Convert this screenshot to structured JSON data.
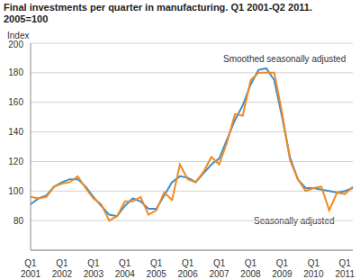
{
  "chart_data": {
    "type": "line",
    "title": "Final investments per quarter in manufacturing. Q1 2001-Q2 2011. 2005=100",
    "y_label": "Index",
    "categories": [
      "Q1 2001",
      null,
      null,
      null,
      "Q1 2002",
      null,
      null,
      null,
      "Q1 2003",
      null,
      null,
      null,
      "Q1 2004",
      null,
      null,
      null,
      "Q1 2005",
      null,
      null,
      null,
      "Q1 2006",
      null,
      null,
      null,
      "Q1 2007",
      null,
      null,
      null,
      "Q1 2008",
      null,
      null,
      null,
      "Q1 2009",
      null,
      null,
      null,
      "Q1 2010",
      null,
      null,
      null,
      "Q1 2011",
      null
    ],
    "series": [
      {
        "name": "Smoothed seasonally adjusted",
        "color": "#3b8fcf",
        "values": [
          91,
          95,
          97,
          103,
          106,
          108,
          108,
          103,
          96,
          90,
          84,
          83,
          90,
          95,
          93,
          88,
          88,
          97,
          106,
          110,
          109,
          106,
          112,
          118,
          122,
          135,
          148,
          158,
          172,
          182,
          183,
          175,
          150,
          123,
          108,
          102,
          102,
          101,
          100,
          99,
          100,
          102
        ]
      },
      {
        "name": "Seasonally adjusted",
        "color": "#f28a1e",
        "values": [
          96,
          95,
          96,
          103,
          105,
          106,
          110,
          102,
          95,
          91,
          80,
          83,
          93,
          93,
          96,
          84,
          87,
          99,
          94,
          118,
          108,
          106,
          113,
          123,
          118,
          133,
          152,
          151,
          175,
          180,
          180,
          180,
          153,
          121,
          108,
          100,
          102,
          103,
          87,
          99,
          98,
          103
        ]
      }
    ],
    "ylim": [
      60,
      200
    ],
    "yticks": [
      80,
      100,
      120,
      140,
      160,
      180,
      200
    ],
    "grid": true
  }
}
